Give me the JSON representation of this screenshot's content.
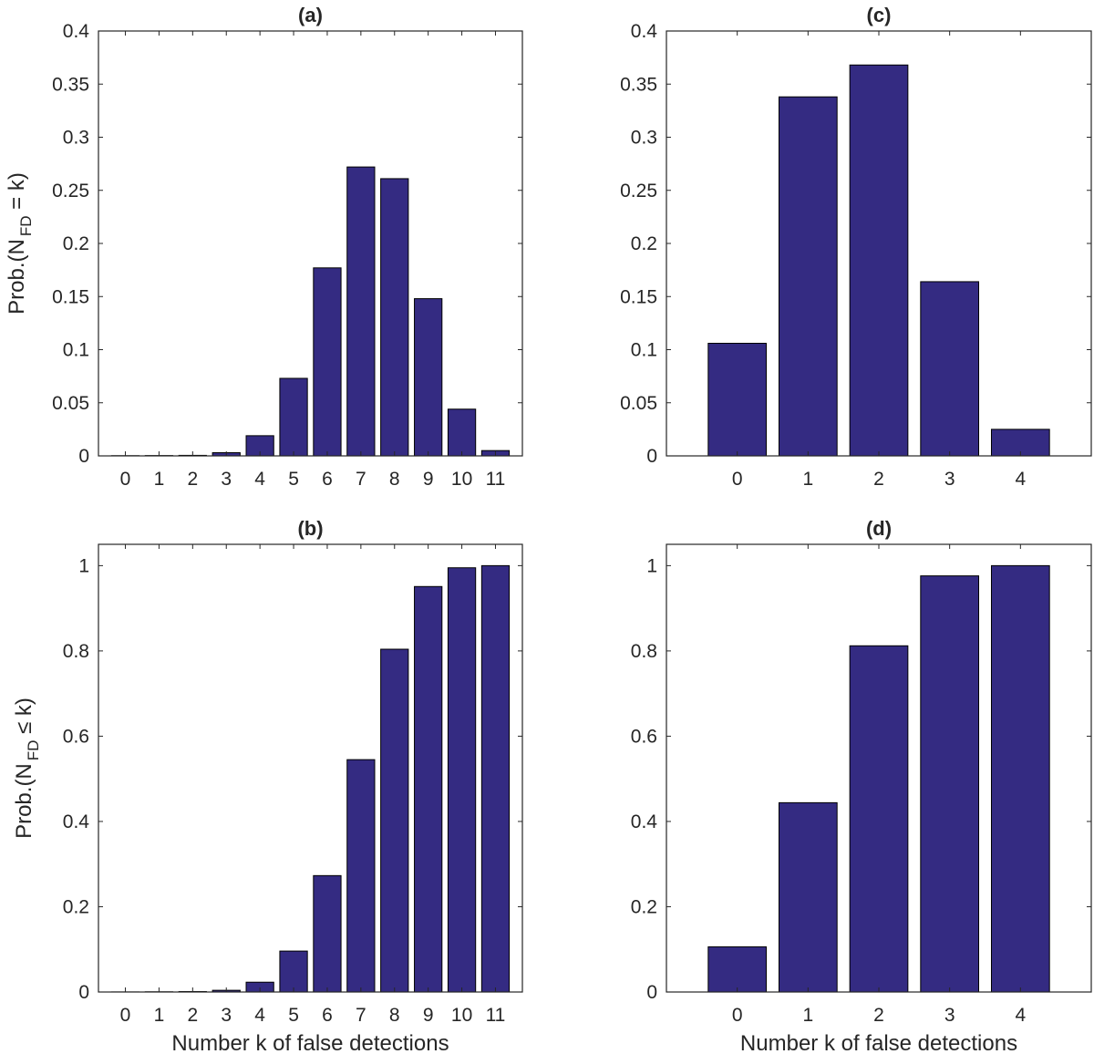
{
  "colors": {
    "bar": "#342b82",
    "axis": "#262626",
    "background": "#ffffff"
  },
  "chart_data": [
    {
      "id": "a",
      "type": "bar",
      "title": "(a)",
      "xlabel": "",
      "ylabel": {
        "prefix": "Prob.(N",
        "sub": "FD",
        "suffix": " = k)"
      },
      "categories": [
        "0",
        "1",
        "2",
        "3",
        "4",
        "5",
        "6",
        "7",
        "8",
        "9",
        "10",
        "11"
      ],
      "values": [
        0.0002,
        0.0003,
        0.0005,
        0.003,
        0.019,
        0.073,
        0.177,
        0.272,
        0.261,
        0.148,
        0.044,
        0.005
      ],
      "ylim": [
        0,
        0.4
      ],
      "yticks": [
        0,
        0.05,
        0.1,
        0.15,
        0.2,
        0.25,
        0.3,
        0.35,
        0.4
      ],
      "ytick_labels": [
        "0",
        "0.05",
        "0.1",
        "0.15",
        "0.2",
        "0.25",
        "0.3",
        "0.35",
        "0.4"
      ],
      "xlim": [
        -0.8,
        11.8
      ],
      "grid": false
    },
    {
      "id": "b",
      "type": "bar",
      "title": "(b)",
      "xlabel": "Number k of false detections",
      "ylabel": {
        "prefix": "Prob.(N",
        "sub": "FD",
        "suffix": " ≤ k)"
      },
      "categories": [
        "0",
        "1",
        "2",
        "3",
        "4",
        "5",
        "6",
        "7",
        "8",
        "9",
        "10",
        "11"
      ],
      "values": [
        0.0002,
        0.0005,
        0.001,
        0.004,
        0.023,
        0.096,
        0.273,
        0.545,
        0.804,
        0.951,
        0.995,
        1.0
      ],
      "ylim": [
        0,
        1.05
      ],
      "yticks": [
        0,
        0.2,
        0.4,
        0.6,
        0.8,
        1
      ],
      "ytick_labels": [
        "0",
        "0.2",
        "0.4",
        "0.6",
        "0.8",
        "1"
      ],
      "xlim": [
        -0.8,
        11.8
      ],
      "grid": false
    },
    {
      "id": "c",
      "type": "bar",
      "title": "(c)",
      "xlabel": "",
      "ylabel": null,
      "categories": [
        "0",
        "1",
        "2",
        "3",
        "4"
      ],
      "values": [
        0.106,
        0.338,
        0.368,
        0.164,
        0.025
      ],
      "ylim": [
        0,
        0.4
      ],
      "yticks": [
        0,
        0.05,
        0.1,
        0.15,
        0.2,
        0.25,
        0.3,
        0.35,
        0.4
      ],
      "ytick_labels": [
        "0",
        "0.05",
        "0.1",
        "0.15",
        "0.2",
        "0.25",
        "0.3",
        "0.35",
        "0.4"
      ],
      "xlim": [
        -1,
        5
      ],
      "grid": false
    },
    {
      "id": "d",
      "type": "bar",
      "title": "(d)",
      "xlabel": "Number k of false detections",
      "ylabel": null,
      "categories": [
        "0",
        "1",
        "2",
        "3",
        "4"
      ],
      "values": [
        0.106,
        0.444,
        0.812,
        0.976,
        1.0
      ],
      "ylim": [
        0,
        1.05
      ],
      "yticks": [
        0,
        0.2,
        0.4,
        0.6,
        0.8,
        1
      ],
      "ytick_labels": [
        "0",
        "0.2",
        "0.4",
        "0.6",
        "0.8",
        "1"
      ],
      "xlim": [
        -1,
        5
      ],
      "grid": false
    }
  ]
}
